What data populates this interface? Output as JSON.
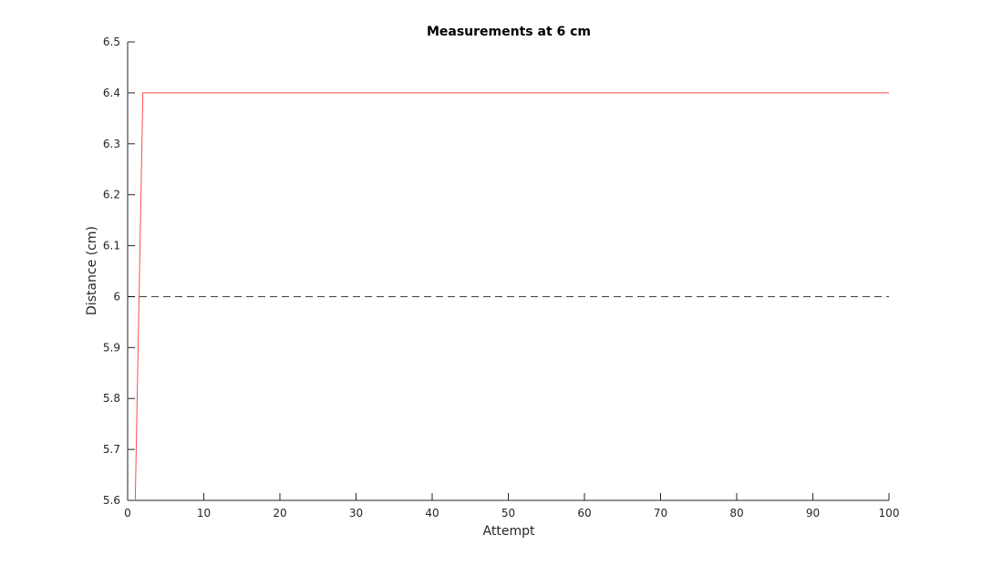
{
  "chart_data": {
    "type": "line",
    "title": "Measurements at 6 cm",
    "xlabel": "Attempt",
    "ylabel": "Distance (cm)",
    "xlim": [
      0,
      100
    ],
    "ylim": [
      5.6,
      6.5
    ],
    "xticks": [
      0,
      10,
      20,
      30,
      40,
      50,
      60,
      70,
      80,
      90,
      100
    ],
    "xtick_labels": [
      "0",
      "10",
      "20",
      "30",
      "40",
      "50",
      "60",
      "70",
      "80",
      "90",
      "100"
    ],
    "yticks": [
      5.6,
      5.7,
      5.8,
      5.9,
      6.0,
      6.1,
      6.2,
      6.3,
      6.4,
      6.5
    ],
    "ytick_labels": [
      "5.6",
      "5.7",
      "5.8",
      "5.9",
      "6",
      "6.1",
      "6.2",
      "6.3",
      "6.4",
      "6.5"
    ],
    "grid": false,
    "legend": "none",
    "series": [
      {
        "color": "#ff4c4c",
        "style": "solid",
        "x": [
          1,
          2,
          3,
          4,
          5,
          6,
          7,
          8,
          9,
          10,
          11,
          12,
          13,
          14,
          15,
          16,
          17,
          18,
          19,
          20,
          21,
          22,
          23,
          24,
          25,
          26,
          27,
          28,
          29,
          30,
          31,
          32,
          33,
          34,
          35,
          36,
          37,
          38,
          39,
          40,
          41,
          42,
          43,
          44,
          45,
          46,
          47,
          48,
          49,
          50,
          51,
          52,
          53,
          54,
          55,
          56,
          57,
          58,
          59,
          60,
          61,
          62,
          63,
          64,
          65,
          66,
          67,
          68,
          69,
          70,
          71,
          72,
          73,
          74,
          75,
          76,
          77,
          78,
          79,
          80,
          81,
          82,
          83,
          84,
          85,
          86,
          87,
          88,
          89,
          90,
          91,
          92,
          93,
          94,
          95,
          96,
          97,
          98,
          99,
          100
        ],
        "y": [
          5.6,
          6.4,
          6.4,
          6.4,
          6.4,
          6.4,
          6.4,
          6.4,
          6.4,
          6.4,
          6.4,
          6.4,
          6.4,
          6.4,
          6.4,
          6.4,
          6.4,
          6.4,
          6.4,
          6.4,
          6.4,
          6.4,
          6.4,
          6.4,
          6.4,
          6.4,
          6.4,
          6.4,
          6.4,
          6.4,
          6.4,
          6.4,
          6.4,
          6.4,
          6.4,
          6.4,
          6.4,
          6.4,
          6.4,
          6.4,
          6.4,
          6.4,
          6.4,
          6.4,
          6.4,
          6.4,
          6.4,
          6.4,
          6.4,
          6.4,
          6.4,
          6.4,
          6.4,
          6.4,
          6.4,
          6.4,
          6.4,
          6.4,
          6.4,
          6.4,
          6.4,
          6.4,
          6.4,
          6.4,
          6.4,
          6.4,
          6.4,
          6.4,
          6.4,
          6.4,
          6.4,
          6.4,
          6.4,
          6.4,
          6.4,
          6.4,
          6.4,
          6.4,
          6.4,
          6.4,
          6.4,
          6.4,
          6.4,
          6.4,
          6.4,
          6.4,
          6.4,
          6.4,
          6.4,
          6.4,
          6.4,
          6.4,
          6.4,
          6.4,
          6.4,
          6.4,
          6.4,
          6.4,
          6.4,
          6.4
        ]
      },
      {
        "color": "#000000",
        "style": "dashed",
        "x": [
          0,
          100
        ],
        "y": [
          6.0,
          6.0
        ]
      }
    ]
  }
}
